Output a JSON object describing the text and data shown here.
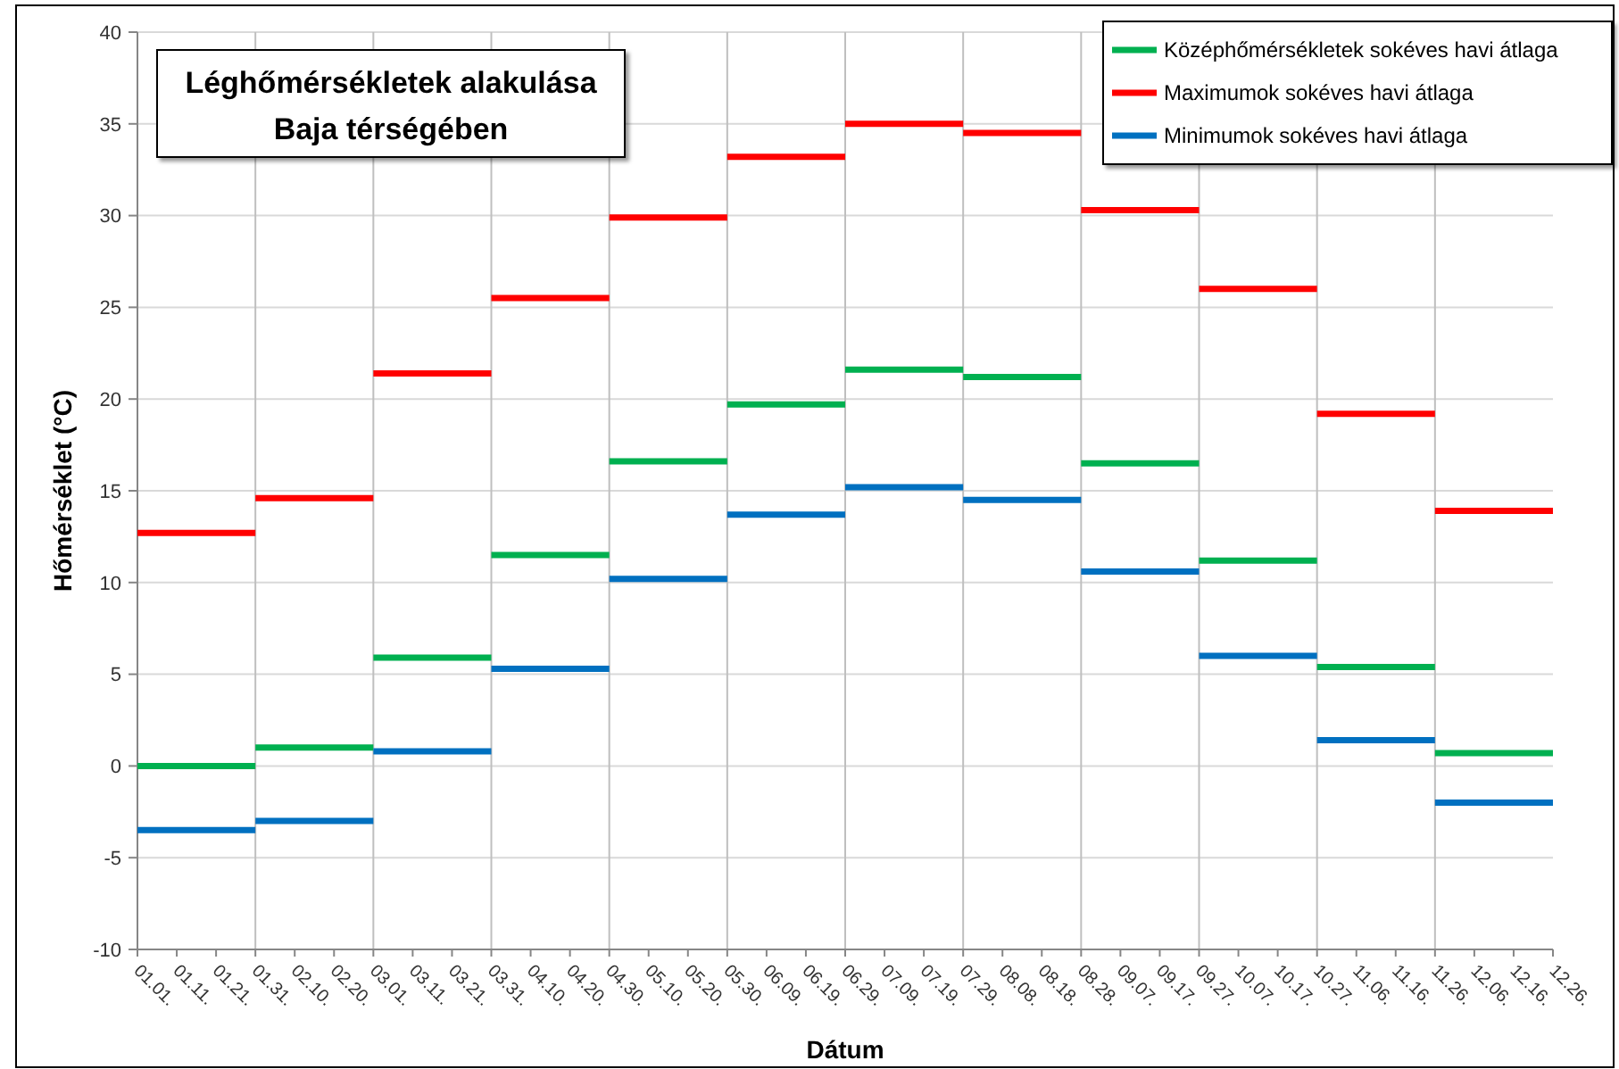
{
  "chart_data": {
    "type": "step",
    "title": "Léghőmérsékletek alakulása\nBaja térségében",
    "xlabel": "Dátum",
    "ylabel": "Hőmérséklet (°C)",
    "x": [
      "--01-01",
      "--01-31",
      "--03-01",
      "--03-31",
      "--04-30",
      "--05-30",
      "--06-29",
      "--07-29",
      "--08-28",
      "--09-27",
      "--10-27",
      "--11-26",
      "--12-26"
    ],
    "series": [
      {
        "name": "Középhőmérsékletek sokéves havi átlaga",
        "color": "#00b050",
        "values": [
          0.0,
          1.0,
          5.9,
          11.5,
          16.6,
          19.7,
          21.6,
          21.2,
          16.5,
          11.2,
          5.4,
          0.7,
          0.7
        ]
      },
      {
        "name": "Maximumok sokéves havi átlaga",
        "color": "#ff0000",
        "values": [
          12.7,
          14.6,
          21.4,
          25.5,
          29.9,
          33.2,
          35.0,
          34.5,
          30.3,
          26.0,
          19.2,
          13.9,
          13.9
        ]
      },
      {
        "name": "Minimumok sokéves havi átlaga",
        "color": "#0070c0",
        "values": [
          -3.5,
          -3.0,
          0.8,
          5.3,
          10.2,
          13.7,
          15.2,
          14.5,
          10.6,
          6.0,
          1.4,
          -2.0,
          -2.0
        ]
      }
    ],
    "xlim": [
      "--01-01",
      "--12-26"
    ],
    "xticks": [
      {
        "value": "--01-01",
        "label": "01.01."
      },
      {
        "value": "--01-11",
        "label": "01.11."
      },
      {
        "value": "--01-21",
        "label": "01.21."
      },
      {
        "value": "--01-31",
        "label": "01.31."
      },
      {
        "value": "--02-10",
        "label": "02.10."
      },
      {
        "value": "--02-20",
        "label": "02.20."
      },
      {
        "value": "--03-01",
        "label": "03.01."
      },
      {
        "value": "--03-11",
        "label": "03.11."
      },
      {
        "value": "--03-21",
        "label": "03.21."
      },
      {
        "value": "--03-31",
        "label": "03.31."
      },
      {
        "value": "--04-10",
        "label": "04.10."
      },
      {
        "value": "--04-20",
        "label": "04.20."
      },
      {
        "value": "--04-30",
        "label": "04.30."
      },
      {
        "value": "--05-10",
        "label": "05.10."
      },
      {
        "value": "--05-20",
        "label": "05.20."
      },
      {
        "value": "--05-30",
        "label": "05.30."
      },
      {
        "value": "--06-09",
        "label": "06.09."
      },
      {
        "value": "--06-19",
        "label": "06.19."
      },
      {
        "value": "--06-29",
        "label": "06.29."
      },
      {
        "value": "--07-09",
        "label": "07.09."
      },
      {
        "value": "--07-19",
        "label": "07.19."
      },
      {
        "value": "--07-29",
        "label": "07.29."
      },
      {
        "value": "--08-08",
        "label": "08.08."
      },
      {
        "value": "--08-18",
        "label": "08.18."
      },
      {
        "value": "--08-28",
        "label": "08.28."
      },
      {
        "value": "--09-07",
        "label": "09.07."
      },
      {
        "value": "--09-17",
        "label": "09.17."
      },
      {
        "value": "--09-27",
        "label": "09.27."
      },
      {
        "value": "--10-07",
        "label": "10.07."
      },
      {
        "value": "--10-17",
        "label": "10.17."
      },
      {
        "value": "--10-27",
        "label": "10.27."
      },
      {
        "value": "--11-06",
        "label": "11.06."
      },
      {
        "value": "--11-16",
        "label": "11.16."
      },
      {
        "value": "--11-26",
        "label": "11.26."
      },
      {
        "value": "--12-06",
        "label": "12.06."
      },
      {
        "value": "--12-16",
        "label": "12.16."
      },
      {
        "value": "--12-26",
        "label": "12.26."
      }
    ],
    "ylim": [
      -10,
      40
    ],
    "yticks": [
      -10,
      -5,
      0,
      5,
      10,
      15,
      20,
      25,
      30,
      35,
      40
    ],
    "ref_lines": [
      {
        "axis": "x",
        "value": "--01-31",
        "color": "#bfbfbf"
      },
      {
        "axis": "x",
        "value": "--03-01",
        "color": "#bfbfbf"
      },
      {
        "axis": "x",
        "value": "--03-31",
        "color": "#bfbfbf"
      },
      {
        "axis": "x",
        "value": "--04-30",
        "color": "#bfbfbf"
      },
      {
        "axis": "x",
        "value": "--05-30",
        "color": "#bfbfbf"
      },
      {
        "axis": "x",
        "value": "--06-29",
        "color": "#bfbfbf"
      },
      {
        "axis": "x",
        "value": "--07-29",
        "color": "#bfbfbf"
      },
      {
        "axis": "x",
        "value": "--08-28",
        "color": "#bfbfbf"
      },
      {
        "axis": "x",
        "value": "--09-27",
        "color": "#bfbfbf"
      },
      {
        "axis": "x",
        "value": "--10-27",
        "color": "#bfbfbf"
      },
      {
        "axis": "x",
        "value": "--11-26",
        "color": "#bfbfbf"
      }
    ],
    "grid": "y",
    "legend": "top right"
  }
}
